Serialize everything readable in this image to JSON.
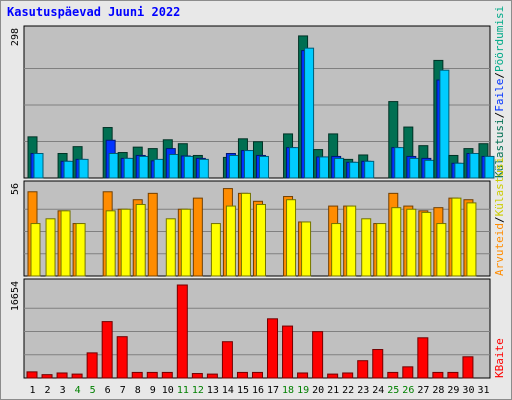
{
  "title": "Kasutuspäevad Juuni 2022",
  "colors": {
    "visits": "#006f52",
    "pages": "#0033ff",
    "files": "#00ccff",
    "sites": "#ff8c00",
    "hits": "#ffff00",
    "kbytes": "#ff0000",
    "weekend": "#008000",
    "weekday": "#000000",
    "panel": "#c0c0c0",
    "grid": "#808080",
    "title": "#0000ff"
  },
  "legend": {
    "top": [
      {
        "text": "Külastusi",
        "color": "#006f52"
      },
      {
        "text": "/",
        "color": "#000000"
      },
      {
        "text": "Faile",
        "color": "#0033ff"
      },
      {
        "text": "/",
        "color": "#000000"
      },
      {
        "text": "Pöördumisi",
        "color": "#00aa88"
      }
    ],
    "middle": [
      {
        "text": "Arvuteid",
        "color": "#ff8c00"
      },
      {
        "text": "/",
        "color": "#000000"
      },
      {
        "text": "Külastusi",
        "color": "#cccc00"
      }
    ],
    "bottom": [
      {
        "text": "KBaite",
        "color": "#ff0000"
      }
    ]
  },
  "chart_data": {
    "type": "bar",
    "categories": [
      "1",
      "2",
      "3",
      "4",
      "5",
      "6",
      "7",
      "8",
      "9",
      "10",
      "11",
      "12",
      "13",
      "14",
      "15",
      "16",
      "17",
      "18",
      "19",
      "20",
      "21",
      "22",
      "23",
      "24",
      "25",
      "26",
      "27",
      "28",
      "29",
      "30",
      "31"
    ],
    "weekend_days": [
      "4",
      "5",
      "11",
      "12",
      "18",
      "19",
      "25",
      "26"
    ],
    "panels": [
      {
        "ymax_label": "298",
        "ylim": [
          0,
          298
        ],
        "series": [
          {
            "name": "Külastusi",
            "values": [
              84,
              0,
              50,
              64,
              0,
              103,
              52,
              63,
              60,
              78,
              70,
              46,
              0,
              42,
              80,
              74,
              0,
              90,
              290,
              58,
              90,
              38,
              47,
              0,
              156,
              104,
              66,
              240,
              46,
              60,
              70
            ]
          },
          {
            "name": "Faile",
            "values": [
              50,
              0,
              34,
              38,
              0,
              77,
              40,
              46,
              35,
              60,
              45,
              40,
              0,
              50,
              56,
              46,
              0,
              62,
              260,
              43,
              44,
              32,
              34,
              0,
              62,
              44,
              40,
              200,
              30,
              50,
              44
            ]
          },
          {
            "name": "Pöördumisi",
            "values": [
              50,
              0,
              34,
              38,
              0,
              50,
              40,
              44,
              38,
              48,
              44,
              38,
              0,
              46,
              56,
              44,
              0,
              62,
              265,
              43,
              40,
              32,
              34,
              0,
              62,
              40,
              36,
              220,
              30,
              50,
              44
            ]
          }
        ]
      },
      {
        "ymax_label": "56",
        "ylim": [
          0,
          56
        ],
        "series": [
          {
            "name": "Arvuteid",
            "values": [
              53,
              0,
              41,
              33,
              0,
              53,
              42,
              48,
              52,
              0,
              42,
              49,
              0,
              55,
              52,
              47,
              0,
              50,
              34,
              0,
              44,
              44,
              0,
              33,
              52,
              44,
              41,
              43,
              49,
              48,
              0
            ]
          },
          {
            "name": "Külastusi",
            "values": [
              33,
              36,
              41,
              33,
              0,
              41,
              42,
              45,
              0,
              36,
              42,
              0,
              33,
              44,
              52,
              45,
              0,
              48,
              34,
              0,
              33,
              44,
              36,
              33,
              43,
              42,
              40,
              33,
              49,
              46,
              0
            ]
          }
        ]
      },
      {
        "ymax_label": "16654",
        "ylim": [
          0,
          16654
        ],
        "series": [
          {
            "name": "KBaite",
            "values": [
              1100,
              600,
              900,
              700,
              4500,
              10100,
              7400,
              1000,
              1000,
              1000,
              16654,
              800,
              700,
              6500,
              1000,
              1000,
              10600,
              9300,
              900,
              8300,
              700,
              900,
              3100,
              5100,
              1000,
              2000,
              7200,
              1000,
              1000,
              3800,
              0
            ]
          }
        ]
      }
    ]
  }
}
